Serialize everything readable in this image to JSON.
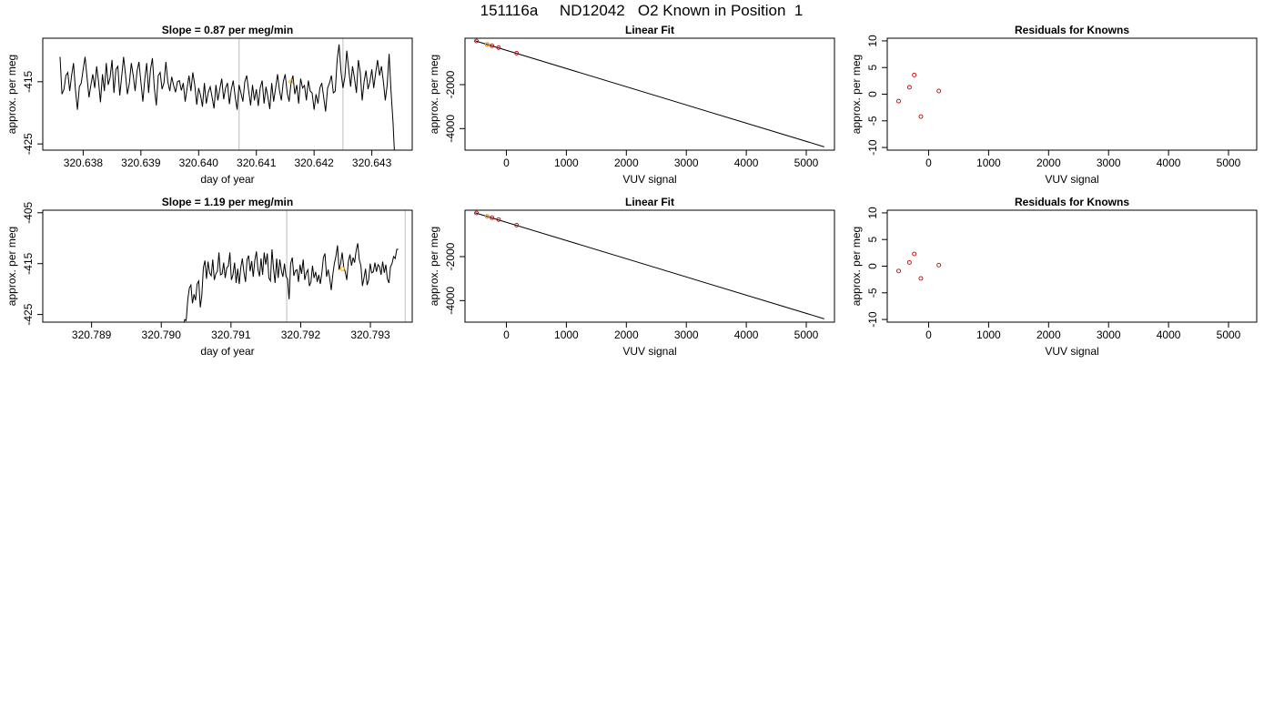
{
  "page_title": "151116a     ND12042   O2 Known in Position  1",
  "chart_data": [
    {
      "type": "line",
      "title": "Slope =  0.87  per meg/min",
      "xlabel": "day of year",
      "ylabel": "approx. per meg",
      "xlim": [
        320.6373,
        320.6437
      ],
      "ylim": [
        -426,
        -408
      ],
      "xticks": [
        "320.638",
        "320.639",
        "320.640",
        "320.641",
        "320.642",
        "320.643"
      ],
      "yticks": [
        "-425",
        "-415"
      ],
      "vlines": [
        320.6407,
        320.6425
      ],
      "vline_color": "#cccccc",
      "line_color": "#000000",
      "series": [
        {
          "x_start": 320.6376,
          "x_end": 320.6434,
          "values": [
            -411.0,
            -417.0,
            -416.2,
            -414.0,
            -413.5,
            -416.5,
            -414.0,
            -412.0,
            -416.3,
            -419.5,
            -415.8,
            -415.2,
            -413.0,
            -411.0,
            -414.2,
            -417.5,
            -415.5,
            -413.8,
            -416.0,
            -412.5,
            -415.0,
            -418.3,
            -413.8,
            -416.5,
            -412.0,
            -415.5,
            -414.3,
            -411.5,
            -416.8,
            -413.0,
            -412.5,
            -417.2,
            -414.2,
            -411.0,
            -413.8,
            -417.0,
            -415.2,
            -412.0,
            -414.0,
            -416.5,
            -413.3,
            -411.8,
            -415.0,
            -418.2,
            -414.6,
            -412.0,
            -416.8,
            -413.0,
            -411.2,
            -416.0,
            -418.8,
            -414.0,
            -413.5,
            -416.2,
            -415.2,
            -411.8,
            -415.0,
            -416.5,
            -414.2,
            -415.6,
            -416.7,
            -415.0,
            -414.8,
            -416.4,
            -415.2,
            -418.2,
            -416.0,
            -414.0,
            -416.5,
            -413.5,
            -415.6,
            -418.7,
            -416.0,
            -417.2,
            -419.0,
            -415.2,
            -418.5,
            -416.7,
            -415.8,
            -417.5,
            -419.3,
            -415.5,
            -418.0,
            -416.2,
            -414.5,
            -417.8,
            -416.0,
            -415.2,
            -418.6,
            -416.2,
            -414.8,
            -417.5,
            -419.5,
            -415.5,
            -416.8,
            -418.2,
            -415.0,
            -414.0,
            -416.5,
            -418.8,
            -415.5,
            -418.0,
            -416.2,
            -418.9,
            -416.0,
            -414.8,
            -418.5,
            -415.8,
            -417.5,
            -419.4,
            -415.2,
            -418.2,
            -416.0,
            -413.8,
            -416.4,
            -418.0,
            -415.0,
            -413.8,
            -416.8,
            -418.2,
            -415.2,
            -414.0,
            -417.0,
            -415.5,
            -418.5,
            -414.5,
            -416.0,
            -415.6,
            -418.0,
            -414.8,
            -416.5,
            -416.8,
            -419.5,
            -417.0,
            -418.5,
            -416.0,
            -415.2,
            -417.5,
            -419.8,
            -416.0,
            -415.2,
            -414.0,
            -416.8,
            -416.5,
            -411.5,
            -409.0,
            -413.5,
            -416.0,
            -414.2,
            -410.0,
            -413.0,
            -415.8,
            -412.5,
            -414.5,
            -416.8,
            -411.5,
            -413.5,
            -418.0,
            -415.0,
            -413.2,
            -416.2,
            -415.0,
            -413.0,
            -416.0,
            -413.6,
            -411.5,
            -414.0,
            -412.5,
            -415.0,
            -418.0,
            -415.5,
            -410.5,
            -416.5,
            -421.5,
            -428.0
          ]
        }
      ],
      "markers": [
        {
          "x": 320.6416,
          "y": -415.0,
          "color": "#ffa500"
        }
      ]
    },
    {
      "type": "scatter",
      "title": "Linear Fit",
      "xlabel": "VUV signal",
      "ylabel": "approx. per meg",
      "xlim": [
        -690,
        5470
      ],
      "ylim": [
        -4980,
        110
      ],
      "xticks": [
        0,
        1000,
        2000,
        3000,
        4000,
        5000
      ],
      "yticks": [
        -2000,
        -4000
      ],
      "fit_line": {
        "x": [
          -520,
          5300
        ],
        "y": [
          -10,
          -4830
        ],
        "color": "#000000"
      },
      "points": {
        "x": [
          -500,
          -320,
          -240,
          -130,
          170
        ],
        "y": [
          -15,
          -170,
          -230,
          -315,
          -570
        ],
        "color": "#cc0000"
      },
      "markers": [
        {
          "x": -320,
          "y": -180,
          "color": "#ffa500"
        }
      ]
    },
    {
      "type": "scatter",
      "title": "Residuals for Knowns",
      "xlabel": "VUV signal",
      "ylabel": "approx. per meg",
      "xlim": [
        -690,
        5470
      ],
      "ylim": [
        -10.5,
        10.5
      ],
      "xticks": [
        0,
        1000,
        2000,
        3000,
        4000,
        5000
      ],
      "yticks": [
        -10,
        -5,
        0,
        5,
        10
      ],
      "points": {
        "x": [
          -500,
          -320,
          -240,
          -130,
          170
        ],
        "y": [
          -1.3,
          1.3,
          3.6,
          -4.2,
          0.6
        ],
        "color": "#cc0000"
      }
    },
    {
      "type": "line",
      "title": "Slope =  1.19  per meg/min",
      "xlabel": "day of year",
      "ylabel": "approx. per meg",
      "xlim": [
        320.7883,
        320.7936
      ],
      "ylim": [
        -426.5,
        -404.5
      ],
      "xticks": [
        "320.789",
        "320.790",
        "320.791",
        "320.792",
        "320.793"
      ],
      "yticks": [
        "-425",
        "-415",
        "-405"
      ],
      "vlines": [
        320.7918,
        320.7935
      ],
      "vline_color": "#cccccc",
      "line_color": "#000000",
      "series": [
        {
          "x_start": 320.7883,
          "x_end": 320.7934,
          "values": [
            -430,
            -430,
            -430,
            -430,
            -430,
            -430,
            -430,
            -430,
            -430,
            -430,
            -430,
            -430,
            -430,
            -430,
            -430,
            -430,
            -430,
            -430,
            -430,
            -430,
            -430,
            -430,
            -430,
            -430,
            -430,
            -430,
            -430,
            -430,
            -430,
            -430,
            -430,
            -430,
            -430,
            -430,
            -430,
            -430,
            -430,
            -430,
            -430,
            -430,
            -430,
            -430,
            -430,
            -430,
            -430,
            -430,
            -430,
            -430,
            -430,
            -430,
            -430,
            -430,
            -430,
            -430,
            -430,
            -430,
            -430,
            -430,
            -430,
            -430,
            -430,
            -430,
            -430,
            -430,
            -430,
            -430,
            -430,
            -430,
            -430,
            -430,
            -430,
            -430,
            -430,
            -430,
            -430,
            -430,
            -430,
            -430,
            -430,
            -430,
            -430,
            -430,
            -430,
            -430,
            -430,
            -430,
            -430,
            -430,
            -430,
            -430,
            -428,
            -426,
            -426.2,
            -422,
            -419.8,
            -419.2,
            -422.8,
            -421.0,
            -422.2,
            -419.0,
            -418.4,
            -423.6,
            -421.2,
            -415.8,
            -414.4,
            -418.0,
            -414.6,
            -416.8,
            -417.4,
            -414.2,
            -418.2,
            -417.0,
            -416.5,
            -412.8,
            -417.2,
            -417.0,
            -414.8,
            -417.8,
            -415.8,
            -415.5,
            -412.8,
            -418.2,
            -417.2,
            -414.8,
            -418.8,
            -416.0,
            -419.0,
            -415.8,
            -414.0,
            -416.6,
            -418.6,
            -414.2,
            -413.4,
            -416.5,
            -414.5,
            -417.6,
            -414.4,
            -412.6,
            -416.2,
            -417.5,
            -414.0,
            -417.2,
            -412.8,
            -415.2,
            -413.0,
            -417.8,
            -418.4,
            -412.2,
            -416.0,
            -418.8,
            -414.0,
            -417.8,
            -414.2,
            -416.4,
            -417.6,
            -415.0,
            -417.5,
            -418.0,
            -422.0,
            -415.0,
            -413.8,
            -417.4,
            -416.4,
            -416.2,
            -418.6,
            -415.2,
            -417.0,
            -414.2,
            -418.2,
            -416.8,
            -416.2,
            -419.4,
            -418.6,
            -415.4,
            -417.8,
            -416.6,
            -418.6,
            -417.2,
            -419.0,
            -416.8,
            -413.8,
            -413.0,
            -417.6,
            -416.2,
            -417.8,
            -420.2,
            -417.2,
            -415.0,
            -413.6,
            -411.4,
            -416.2,
            -415.0,
            -412.8,
            -415.6,
            -416.6,
            -418.2,
            -414.6,
            -413.2,
            -415.4,
            -413.8,
            -414.8,
            -412.4,
            -411.0,
            -414.2,
            -415.4,
            -419.4,
            -417.8,
            -416.0,
            -419.2,
            -418.2,
            -415.0,
            -416.8,
            -416.6,
            -414.8,
            -416.6,
            -415.2,
            -415.6,
            -417.2,
            -414.6,
            -416.8,
            -415.2,
            -418.0,
            -418.8,
            -415.6,
            -415.0,
            -413.6,
            -414.0,
            -412.2,
            -412.2
          ]
        }
      ],
      "markers": [
        {
          "x": 320.7926,
          "y": -416.0,
          "color": "#ffa500"
        }
      ]
    },
    {
      "type": "scatter",
      "title": "Linear Fit",
      "xlabel": "VUV signal",
      "ylabel": "approx. per meg",
      "xlim": [
        -690,
        5470
      ],
      "ylim": [
        -4980,
        110
      ],
      "xticks": [
        0,
        1000,
        2000,
        3000,
        4000,
        5000
      ],
      "yticks": [
        -2000,
        -4000
      ],
      "fit_line": {
        "x": [
          -520,
          5300
        ],
        "y": [
          -10,
          -4830
        ],
        "color": "#000000"
      },
      "points": {
        "x": [
          -500,
          -320,
          -240,
          -130,
          170
        ],
        "y": [
          -15,
          -170,
          -230,
          -315,
          -570
        ],
        "color": "#cc0000"
      },
      "markers": [
        {
          "x": -320,
          "y": -170,
          "color": "#ffa500"
        }
      ]
    },
    {
      "type": "scatter",
      "title": "Residuals for Knowns",
      "xlabel": "VUV signal",
      "ylabel": "approx. per meg",
      "xlim": [
        -690,
        5470
      ],
      "ylim": [
        -10.5,
        10.5
      ],
      "xticks": [
        0,
        1000,
        2000,
        3000,
        4000,
        5000
      ],
      "yticks": [
        -10,
        -5,
        0,
        5,
        10
      ],
      "points": {
        "x": [
          -500,
          -320,
          -240,
          -130,
          170
        ],
        "y": [
          -0.9,
          0.7,
          2.3,
          -2.3,
          0.2
        ],
        "color": "#cc0000"
      }
    }
  ]
}
